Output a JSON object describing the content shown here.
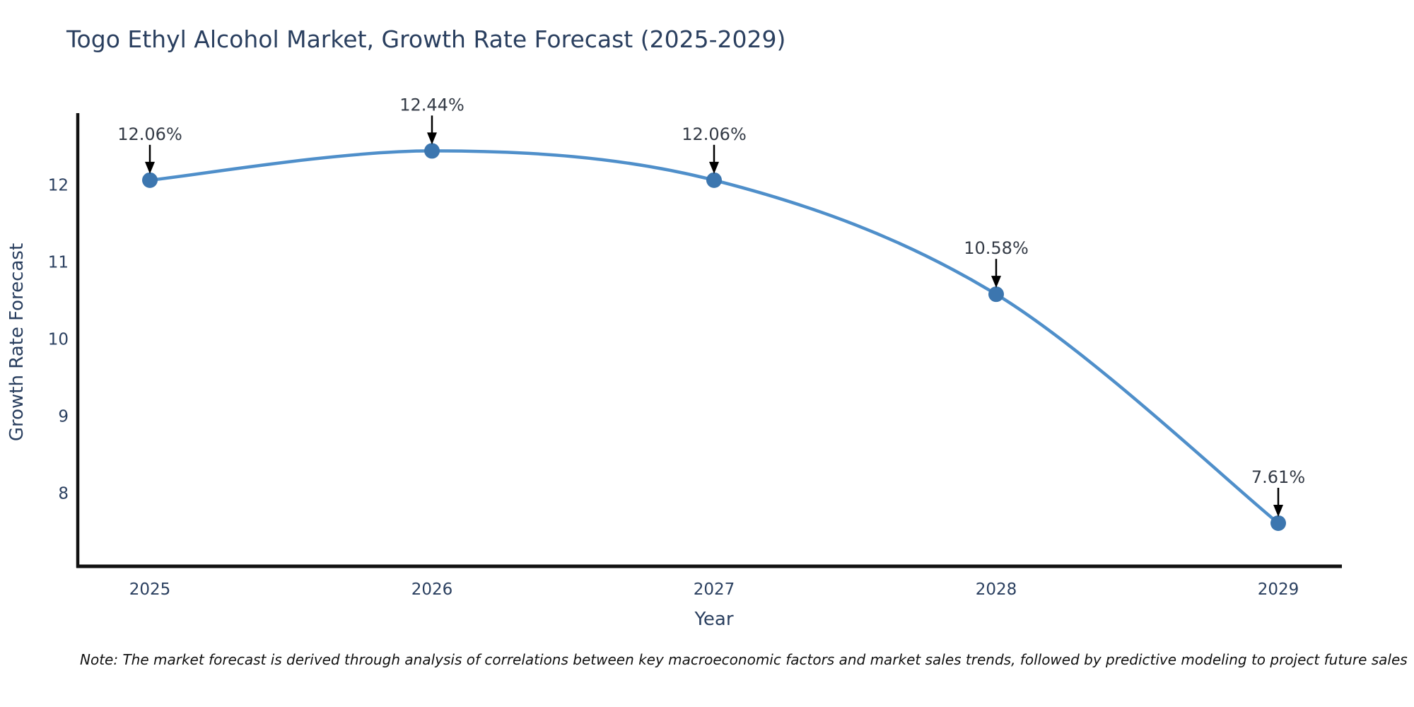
{
  "chart_data": {
    "type": "line",
    "title": "Togo Ethyl Alcohol Market, Growth Rate Forecast (2025-2029)",
    "x": [
      2025,
      2026,
      2027,
      2028,
      2029
    ],
    "xticklabels": [
      "2025",
      "2026",
      "2027",
      "2028",
      "2029"
    ],
    "series": [
      {
        "name": "Growth Rate Forecast",
        "values": [
          12.06,
          12.44,
          12.06,
          10.58,
          7.61
        ]
      }
    ],
    "point_labels": [
      "12.06%",
      "12.44%",
      "12.06%",
      "10.58%",
      "7.61%"
    ],
    "xlabel": "Year",
    "ylabel": "Growth Rate Forecast",
    "yticks": [
      8,
      9,
      10,
      11,
      12
    ],
    "ylim": [
      7.05,
      12.93
    ],
    "grid": false,
    "legend": "none",
    "line_shape": "spline",
    "annotation_arrows": "down-black",
    "note": "Note: The market forecast is derived through analysis of correlations between key macroeconomic factors and market sales trends, followed by predictive modeling to project future sales",
    "colors": {
      "line": "#4f8fca",
      "marker": "#3c76af",
      "text": "#2a3f5f",
      "annotation_text": "#333a45",
      "arrow": "#000000",
      "axis_spine": "#111111",
      "background": "#ffffff"
    }
  }
}
